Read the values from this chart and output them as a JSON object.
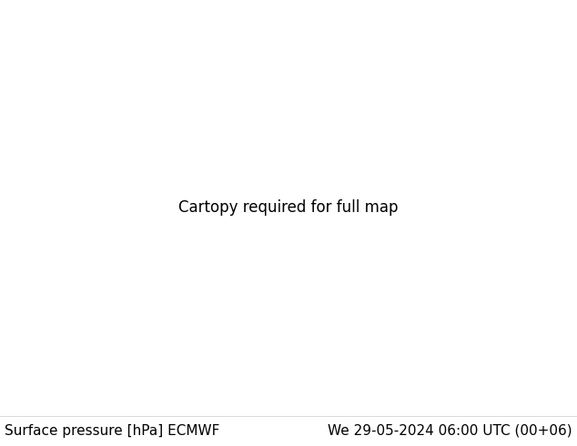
{
  "title_left": "Surface pressure [hPa] ECMWF",
  "title_right": "We 29-05-2024 06:00 UTC (00+06)",
  "ocean_color": "#b8d8ea",
  "land_color_desert": "#e8dfc0",
  "land_color_green": "#c8d8a8",
  "land_color_mountain": "#d0c8a0",
  "footer_text_color": "#000000",
  "footer_fontsize": 11,
  "fig_width": 6.34,
  "fig_height": 4.9,
  "dpi": 100,
  "map_extent": [
    -135,
    -60,
    5,
    50
  ],
  "red_color": "#cc2222",
  "blue_color": "#2244cc",
  "black_color": "#000000"
}
